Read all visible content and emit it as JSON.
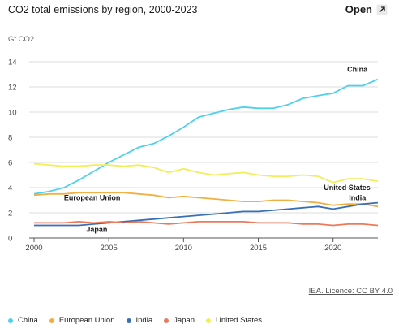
{
  "header": {
    "title": "CO2 total emissions by region, 2000-2023",
    "open_label": "Open",
    "open_icon": "external-expand-icon"
  },
  "licence": "IEA. Licence: CC BY 4.0",
  "chart_data": {
    "type": "line",
    "ylabel": "Gt CO2",
    "xlim": [
      2000,
      2023
    ],
    "ylim": [
      0,
      14
    ],
    "x_ticks": [
      2000,
      2005,
      2010,
      2015,
      2020
    ],
    "y_ticks": [
      0,
      2,
      4,
      6,
      8,
      10,
      12,
      14
    ],
    "grid": "horizontal",
    "legend_position": "bottom",
    "x": [
      2000,
      2001,
      2002,
      2003,
      2004,
      2005,
      2006,
      2007,
      2008,
      2009,
      2010,
      2011,
      2012,
      2013,
      2014,
      2015,
      2016,
      2017,
      2018,
      2019,
      2020,
      2021,
      2022,
      2023
    ],
    "series": [
      {
        "name": "China",
        "color": "#4fd0ee",
        "label": "China",
        "values": [
          3.5,
          3.7,
          4.0,
          4.6,
          5.3,
          6.0,
          6.6,
          7.2,
          7.5,
          8.1,
          8.8,
          9.6,
          9.9,
          10.2,
          10.4,
          10.3,
          10.3,
          10.6,
          11.1,
          11.3,
          11.5,
          12.1,
          12.1,
          12.6
        ]
      },
      {
        "name": "European Union",
        "color": "#f0b043",
        "label": "European Union",
        "values": [
          3.4,
          3.5,
          3.5,
          3.6,
          3.6,
          3.6,
          3.6,
          3.5,
          3.4,
          3.2,
          3.3,
          3.2,
          3.1,
          3.0,
          2.9,
          2.9,
          3.0,
          3.0,
          2.9,
          2.8,
          2.6,
          2.7,
          2.7,
          2.5
        ]
      },
      {
        "name": "India",
        "color": "#3a6fb8",
        "label": "India",
        "values": [
          1.0,
          1.0,
          1.0,
          1.0,
          1.1,
          1.2,
          1.3,
          1.4,
          1.5,
          1.6,
          1.7,
          1.8,
          1.9,
          2.0,
          2.1,
          2.1,
          2.2,
          2.3,
          2.4,
          2.5,
          2.3,
          2.5,
          2.7,
          2.8
        ]
      },
      {
        "name": "Japan",
        "color": "#ea7a5a",
        "label": "Japan",
        "values": [
          1.2,
          1.2,
          1.2,
          1.3,
          1.2,
          1.3,
          1.2,
          1.3,
          1.2,
          1.1,
          1.2,
          1.3,
          1.3,
          1.3,
          1.3,
          1.2,
          1.2,
          1.2,
          1.1,
          1.1,
          1.0,
          1.1,
          1.1,
          1.0
        ]
      },
      {
        "name": "United States",
        "color": "#f2ee5a",
        "label": "United States",
        "values": [
          5.9,
          5.8,
          5.7,
          5.7,
          5.8,
          5.8,
          5.7,
          5.8,
          5.6,
          5.2,
          5.5,
          5.2,
          5.0,
          5.1,
          5.2,
          5.0,
          4.9,
          4.9,
          5.0,
          4.9,
          4.4,
          4.7,
          4.7,
          4.5
        ]
      }
    ]
  }
}
